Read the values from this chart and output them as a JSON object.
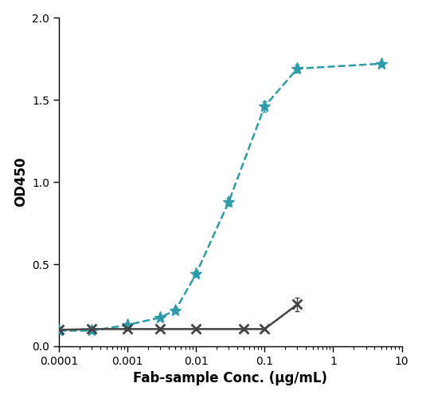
{
  "xlabel": "Fab-sample Conc. (μg/mL)",
  "ylabel": "OD450",
  "xlim": [
    0.0001,
    10
  ],
  "ylim": [
    0.0,
    2.0
  ],
  "yticks": [
    0.0,
    0.5,
    1.0,
    1.5,
    2.0
  ],
  "teal_x": [
    0.0001,
    0.0003,
    0.001,
    0.003,
    0.005,
    0.01,
    0.03,
    0.1,
    0.3,
    5.0
  ],
  "teal_y": [
    0.095,
    0.095,
    0.13,
    0.175,
    0.22,
    0.44,
    0.88,
    1.46,
    1.69,
    1.72
  ],
  "grey_x": [
    0.0001,
    0.0003,
    0.001,
    0.003,
    0.01,
    0.05,
    0.1,
    0.3
  ],
  "grey_y": [
    0.1,
    0.105,
    0.105,
    0.105,
    0.105,
    0.105,
    0.105,
    0.255
  ],
  "teal_color": "#2e9bab",
  "grey_color": "#444444",
  "background_color": "#ffffff",
  "teal_error": [
    0.008,
    0.008,
    0.01,
    0.012,
    0.015,
    0.018,
    0.025,
    0.03,
    0.025,
    0.015
  ],
  "grey_error": [
    0.008,
    0.008,
    0.008,
    0.008,
    0.008,
    0.008,
    0.008,
    0.04
  ]
}
